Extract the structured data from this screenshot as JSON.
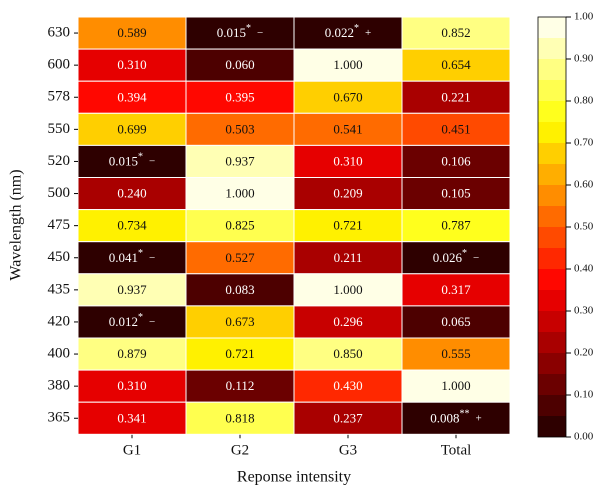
{
  "chart_data": {
    "type": "heatmap",
    "xlabel": "Reponse intensity",
    "ylabel": "Wavelength (nm)",
    "categories": [
      "630",
      "600",
      "578",
      "550",
      "520",
      "500",
      "475",
      "450",
      "435",
      "420",
      "400",
      "380",
      "365"
    ],
    "series": [
      {
        "name": "G1",
        "values": [
          0.589,
          0.31,
          0.394,
          0.699,
          0.015,
          0.24,
          0.734,
          0.041,
          0.937,
          0.012,
          0.879,
          0.31,
          0.341
        ],
        "value_labels": [
          "0.589",
          "0.310",
          "0.394",
          "0.699",
          "0.015",
          "0.240",
          "0.734",
          "0.041",
          "0.937",
          "0.012",
          "0.879",
          "0.310",
          "0.341"
        ],
        "stars": [
          null,
          null,
          null,
          null,
          "*",
          null,
          null,
          "*",
          null,
          "*",
          null,
          null,
          null
        ],
        "signs": [
          null,
          null,
          null,
          null,
          "−",
          null,
          null,
          "−",
          null,
          "−",
          null,
          null,
          null
        ]
      },
      {
        "name": "G2",
        "values": [
          0.015,
          0.06,
          0.395,
          0.503,
          0.937,
          1.0,
          0.825,
          0.527,
          0.083,
          0.673,
          0.721,
          0.112,
          0.818
        ],
        "value_labels": [
          "0.015",
          "0.060",
          "0.395",
          "0.503",
          "0.937",
          "1.000",
          "0.825",
          "0.527",
          "0.083",
          "0.673",
          "0.721",
          "0.112",
          "0.818"
        ],
        "stars": [
          "*",
          null,
          null,
          null,
          null,
          null,
          null,
          null,
          null,
          null,
          null,
          null,
          null
        ],
        "signs": [
          "−",
          null,
          null,
          null,
          null,
          null,
          null,
          null,
          null,
          null,
          null,
          null,
          null
        ]
      },
      {
        "name": "G3",
        "values": [
          0.022,
          1.0,
          0.67,
          0.541,
          0.31,
          0.209,
          0.721,
          0.211,
          1.0,
          0.296,
          0.85,
          0.43,
          0.237
        ],
        "value_labels": [
          "0.022",
          "1.000",
          "0.670",
          "0.541",
          "0.310",
          "0.209",
          "0.721",
          "0.211",
          "1.000",
          "0.296",
          "0.850",
          "0.430",
          "0.237"
        ],
        "stars": [
          "*",
          null,
          null,
          null,
          null,
          null,
          null,
          null,
          null,
          null,
          null,
          null,
          null
        ],
        "signs": [
          "+",
          null,
          null,
          null,
          null,
          null,
          null,
          null,
          null,
          null,
          null,
          null,
          null
        ]
      },
      {
        "name": "Total",
        "values": [
          0.852,
          0.654,
          0.221,
          0.451,
          0.106,
          0.105,
          0.787,
          0.026,
          0.317,
          0.065,
          0.555,
          1.0,
          0.008
        ],
        "value_labels": [
          "0.852",
          "0.654",
          "0.221",
          "0.451",
          "0.106",
          "0.105",
          "0.787",
          "0.026",
          "0.317",
          "0.065",
          "0.555",
          "1.000",
          "0.008"
        ],
        "stars": [
          null,
          null,
          null,
          null,
          null,
          null,
          null,
          "*",
          null,
          null,
          null,
          null,
          "**"
        ],
        "signs": [
          null,
          null,
          null,
          null,
          null,
          null,
          null,
          "−",
          null,
          null,
          null,
          null,
          "+"
        ]
      }
    ],
    "colormap": "hot",
    "levels": 20,
    "clim": [
      0,
      1
    ],
    "cticks": [
      {
        "value": 0,
        "label": "0.00"
      },
      {
        "value": 0.1,
        "label": "0.10"
      },
      {
        "value": 0.2,
        "label": "0.20"
      },
      {
        "value": 0.3,
        "label": "0.30"
      },
      {
        "value": 0.4,
        "label": "0.40"
      },
      {
        "value": 0.5,
        "label": "0.50"
      },
      {
        "value": 0.6,
        "label": "0.60"
      },
      {
        "value": 0.7,
        "label": "0.70"
      },
      {
        "value": 0.8,
        "label": "0.80"
      },
      {
        "value": 0.9,
        "label": "0.90"
      },
      {
        "value": 1,
        "label": "1.00"
      }
    ]
  }
}
